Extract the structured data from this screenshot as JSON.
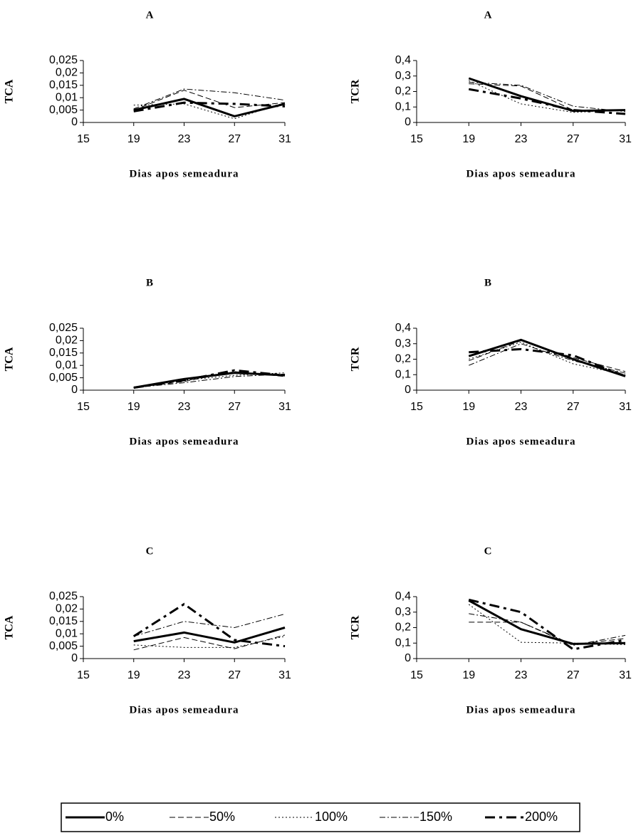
{
  "chart_data": [
    {
      "type": "line",
      "title": "A",
      "ylabel": "TCA",
      "xlabel": "Dias apos semeadura",
      "x": [
        19,
        23,
        27,
        31
      ],
      "xlim": [
        15,
        31
      ],
      "xticks": [
        15,
        19,
        23,
        27,
        31
      ],
      "ylim": [
        0,
        0.025
      ],
      "yticks": [
        0,
        {
          "value": 0.005,
          "label": "0,005"
        },
        {
          "value": 0.01,
          "label": "0,01"
        },
        {
          "value": 0.015,
          "label": "0,015"
        },
        {
          "value": 0.02,
          "label": "0,02"
        },
        {
          "value": 0.025,
          "label": "0,025"
        }
      ],
      "series": [
        {
          "name": "0%",
          "color": "#000000",
          "linestyle": "solid",
          "linewidth": 3,
          "values": [
            0.005,
            0.0095,
            0.0025,
            0.0075
          ]
        },
        {
          "name": "50%",
          "color": "#000000",
          "linestyle": "dashed",
          "linewidth": 1,
          "values": [
            0.005,
            0.013,
            0.006,
            0.008
          ]
        },
        {
          "name": "100%",
          "color": "#000000",
          "linestyle": "dotted",
          "linewidth": 1,
          "values": [
            0.007,
            0.0075,
            0.0015,
            0.008
          ]
        },
        {
          "name": "150%",
          "color": "#000000",
          "linestyle": "dashdot",
          "linewidth": 1,
          "values": [
            0.0055,
            0.0135,
            0.012,
            0.009
          ]
        },
        {
          "name": "200%",
          "color": "#000000",
          "linestyle": "longdash",
          "linewidth": 3,
          "values": [
            0.0045,
            0.008,
            0.0075,
            0.0065
          ]
        }
      ]
    },
    {
      "type": "line",
      "title": "A",
      "ylabel": "TCR",
      "xlabel": "Dias apos semeadura",
      "x": [
        19,
        23,
        27,
        31
      ],
      "xlim": [
        15,
        31
      ],
      "xticks": [
        15,
        19,
        23,
        27,
        31
      ],
      "ylim": [
        0,
        0.4
      ],
      "yticks": [
        0,
        {
          "value": 0.1,
          "label": "0,1"
        },
        {
          "value": 0.2,
          "label": "0,2"
        },
        {
          "value": 0.3,
          "label": "0,3"
        },
        {
          "value": 0.4,
          "label": "0,4"
        }
      ],
      "series": [
        {
          "name": "0%",
          "color": "#000000",
          "linestyle": "solid",
          "linewidth": 3,
          "values": [
            0.285,
            0.17,
            0.075,
            0.08
          ]
        },
        {
          "name": "50%",
          "color": "#000000",
          "linestyle": "dashed",
          "linewidth": 1,
          "values": [
            0.25,
            0.235,
            0.08,
            0.075
          ]
        },
        {
          "name": "100%",
          "color": "#000000",
          "linestyle": "dotted",
          "linewidth": 1,
          "values": [
            0.27,
            0.12,
            0.065,
            0.08
          ]
        },
        {
          "name": "150%",
          "color": "#000000",
          "linestyle": "dashdot",
          "linewidth": 1,
          "values": [
            0.26,
            0.24,
            0.105,
            0.07
          ]
        },
        {
          "name": "200%",
          "color": "#000000",
          "linestyle": "longdash",
          "linewidth": 3,
          "values": [
            0.215,
            0.155,
            0.08,
            0.055
          ]
        }
      ]
    },
    {
      "type": "line",
      "title": "B",
      "ylabel": "TCA",
      "xlabel": "Dias apos semeadura",
      "x": [
        19,
        23,
        27,
        31
      ],
      "xlim": [
        15,
        31
      ],
      "xticks": [
        15,
        19,
        23,
        27,
        31
      ],
      "ylim": [
        0,
        0.025
      ],
      "yticks": [
        0,
        {
          "value": 0.005,
          "label": "0,005"
        },
        {
          "value": 0.01,
          "label": "0,01"
        },
        {
          "value": 0.015,
          "label": "0,015"
        },
        {
          "value": 0.02,
          "label": "0,02"
        },
        {
          "value": 0.025,
          "label": "0,025"
        }
      ],
      "series": [
        {
          "name": "0%",
          "color": "#000000",
          "linestyle": "solid",
          "linewidth": 3,
          "values": [
            0.001,
            0.0045,
            0.007,
            0.006
          ]
        },
        {
          "name": "50%",
          "color": "#000000",
          "linestyle": "dashed",
          "linewidth": 1,
          "values": [
            0.001,
            0.0035,
            0.0075,
            0.0055
          ]
        },
        {
          "name": "100%",
          "color": "#000000",
          "linestyle": "dotted",
          "linewidth": 1,
          "values": [
            0.001,
            0.004,
            0.006,
            0.007
          ]
        },
        {
          "name": "150%",
          "color": "#000000",
          "linestyle": "dashdot",
          "linewidth": 1,
          "values": [
            0.001,
            0.003,
            0.0055,
            0.0065
          ]
        },
        {
          "name": "200%",
          "color": "#000000",
          "linestyle": "longdash",
          "linewidth": 3,
          "values": [
            0.001,
            0.004,
            0.008,
            0.006
          ]
        }
      ]
    },
    {
      "type": "line",
      "title": "B",
      "ylabel": "TCR",
      "xlabel": "Dias apos semeadura",
      "x": [
        19,
        23,
        27,
        31
      ],
      "xlim": [
        15,
        31
      ],
      "xticks": [
        15,
        19,
        23,
        27,
        31
      ],
      "ylim": [
        0,
        0.4
      ],
      "yticks": [
        0,
        {
          "value": 0.1,
          "label": "0,1"
        },
        {
          "value": 0.2,
          "label": "0,2"
        },
        {
          "value": 0.3,
          "label": "0,3"
        },
        {
          "value": 0.4,
          "label": "0,4"
        }
      ],
      "series": [
        {
          "name": "0%",
          "color": "#000000",
          "linestyle": "solid",
          "linewidth": 3,
          "values": [
            0.22,
            0.325,
            0.2,
            0.09
          ]
        },
        {
          "name": "50%",
          "color": "#000000",
          "linestyle": "dashed",
          "linewidth": 1,
          "values": [
            0.19,
            0.32,
            0.21,
            0.12
          ]
        },
        {
          "name": "100%",
          "color": "#000000",
          "linestyle": "dotted",
          "linewidth": 1,
          "values": [
            0.2,
            0.31,
            0.17,
            0.1
          ]
        },
        {
          "name": "150%",
          "color": "#000000",
          "linestyle": "dashdot",
          "linewidth": 1,
          "values": [
            0.16,
            0.3,
            0.19,
            0.11
          ]
        },
        {
          "name": "200%",
          "color": "#000000",
          "linestyle": "longdash",
          "linewidth": 3,
          "values": [
            0.245,
            0.265,
            0.225,
            0.09
          ]
        }
      ]
    },
    {
      "type": "line",
      "title": "C",
      "ylabel": "TCA",
      "xlabel": "Dias apos semeadura",
      "x": [
        19,
        23,
        27,
        31
      ],
      "xlim": [
        15,
        31
      ],
      "xticks": [
        15,
        19,
        23,
        27,
        31
      ],
      "ylim": [
        0,
        0.025
      ],
      "yticks": [
        0,
        {
          "value": 0.005,
          "label": "0,005"
        },
        {
          "value": 0.01,
          "label": "0,01"
        },
        {
          "value": 0.015,
          "label": "0,015"
        },
        {
          "value": 0.02,
          "label": "0,02"
        },
        {
          "value": 0.025,
          "label": "0,025"
        }
      ],
      "series": [
        {
          "name": "0%",
          "color": "#000000",
          "linestyle": "solid",
          "linewidth": 3,
          "values": [
            0.007,
            0.0105,
            0.0065,
            0.0125
          ]
        },
        {
          "name": "50%",
          "color": "#000000",
          "linestyle": "dashed",
          "linewidth": 1,
          "values": [
            0.0035,
            0.0085,
            0.004,
            0.0095
          ]
        },
        {
          "name": "100%",
          "color": "#000000",
          "linestyle": "dotted",
          "linewidth": 1,
          "values": [
            0.0055,
            0.0045,
            0.0045,
            0.009
          ]
        },
        {
          "name": "150%",
          "color": "#000000",
          "linestyle": "dashdot",
          "linewidth": 1,
          "values": [
            0.009,
            0.015,
            0.0125,
            0.018
          ]
        },
        {
          "name": "200%",
          "color": "#000000",
          "linestyle": "longdash",
          "linewidth": 3,
          "values": [
            0.009,
            0.022,
            0.0075,
            0.005
          ]
        }
      ]
    },
    {
      "type": "line",
      "title": "C",
      "ylabel": "TCR",
      "xlabel": "Dias apos semeadura",
      "x": [
        19,
        23,
        27,
        31
      ],
      "xlim": [
        15,
        31
      ],
      "xticks": [
        15,
        19,
        23,
        27,
        31
      ],
      "ylim": [
        0,
        0.4
      ],
      "yticks": [
        0,
        {
          "value": 0.1,
          "label": "0,1"
        },
        {
          "value": 0.2,
          "label": "0,2"
        },
        {
          "value": 0.3,
          "label": "0,3"
        },
        {
          "value": 0.4,
          "label": "0,4"
        }
      ],
      "series": [
        {
          "name": "0%",
          "color": "#000000",
          "linestyle": "solid",
          "linewidth": 3,
          "values": [
            0.375,
            0.19,
            0.095,
            0.1
          ]
        },
        {
          "name": "50%",
          "color": "#000000",
          "linestyle": "dashed",
          "linewidth": 1,
          "values": [
            0.235,
            0.235,
            0.09,
            0.13
          ]
        },
        {
          "name": "100%",
          "color": "#000000",
          "linestyle": "dotted",
          "linewidth": 1,
          "values": [
            0.35,
            0.105,
            0.1,
            0.09
          ]
        },
        {
          "name": "150%",
          "color": "#000000",
          "linestyle": "dashdot",
          "linewidth": 1,
          "values": [
            0.29,
            0.235,
            0.085,
            0.15
          ]
        },
        {
          "name": "200%",
          "color": "#000000",
          "linestyle": "longdash",
          "linewidth": 3,
          "values": [
            0.38,
            0.3,
            0.06,
            0.12
          ]
        }
      ]
    }
  ]
}
